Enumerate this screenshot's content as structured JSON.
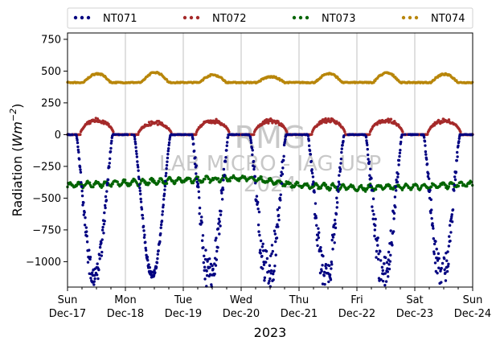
{
  "chart_data": {
    "type": "scatter",
    "xlabel": "2023",
    "ylabel": "Radiation (Wm⁻²)",
    "ylim": [
      -1200,
      800
    ],
    "xlim": [
      "2023-12-17",
      "2023-12-24"
    ],
    "yticks": [
      -1000,
      -750,
      -500,
      -250,
      0,
      250,
      500,
      750
    ],
    "ytick_labels": [
      "−1000",
      "−750",
      "−500",
      "−250",
      "0",
      "250",
      "500",
      "750"
    ],
    "xticks": [
      {
        "date": "2023-12-17",
        "day": "Sun",
        "label": "Dec-17"
      },
      {
        "date": "2023-12-18",
        "day": "Mon",
        "label": "Dec-18"
      },
      {
        "date": "2023-12-19",
        "day": "Tue",
        "label": "Dec-19"
      },
      {
        "date": "2023-12-20",
        "day": "Wed",
        "label": "Dec-20"
      },
      {
        "date": "2023-12-21",
        "day": "Thu",
        "label": "Dec-21"
      },
      {
        "date": "2023-12-22",
        "day": "Fri",
        "label": "Dec-22"
      },
      {
        "date": "2023-12-23",
        "day": "Sat",
        "label": "Dec-23"
      },
      {
        "date": "2023-12-24",
        "day": "Sun",
        "label": "Dec-24"
      }
    ],
    "grid": "vertical at day ticks",
    "legend_position": "top",
    "watermark": {
      "line1": "RMG",
      "line2": "LAB MICRO - IAG USP",
      "line3": "2024"
    },
    "series": [
      {
        "name": "NT071",
        "color": "#000080",
        "baseline": 0,
        "day_min": [
          -1180,
          -1120,
          -1200,
          -1200,
          -1200,
          -1200,
          -1200
        ],
        "day_spread": [
          200,
          60,
          350,
          400,
          300,
          350,
          300
        ]
      },
      {
        "name": "NT072",
        "color": "#a52a2a",
        "baseline": 0,
        "day_peak": [
          130,
          110,
          125,
          125,
          130,
          130,
          125
        ]
      },
      {
        "name": "NT073",
        "color": "#006400",
        "x": [
          "2023-12-17",
          "2023-12-18",
          "2023-12-19",
          "2023-12-20",
          "2023-12-21",
          "2023-12-22",
          "2023-12-23",
          "2023-12-24"
        ],
        "values": [
          -400,
          -380,
          -360,
          -340,
          -400,
          -420,
          -410,
          -390
        ]
      },
      {
        "name": "NT074",
        "color": "#b8860b",
        "baseline": 410,
        "day_peak": [
          480,
          490,
          470,
          455,
          480,
          485,
          475
        ]
      }
    ]
  }
}
